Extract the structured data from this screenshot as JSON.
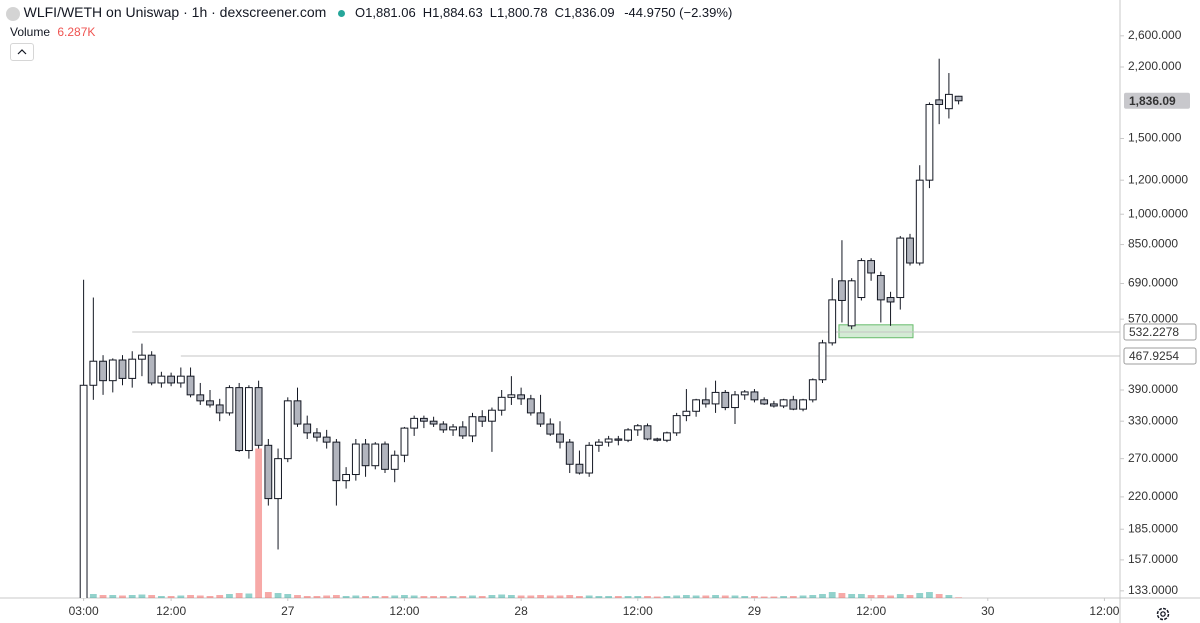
{
  "header": {
    "title": "WLFI/WETH on Uniswap · 1h · dexscreener.com",
    "ohlc": [
      {
        "key": "O",
        "value": "1,881.06"
      },
      {
        "key": "H",
        "value": "1,884.63"
      },
      {
        "key": "L",
        "value": "1,800.78"
      },
      {
        "key": "C",
        "value": "1,836.09"
      }
    ],
    "change": "-44.9750",
    "change_pct": "(−2.39%)",
    "volume_label": "Volume",
    "volume_value": "6.287K"
  },
  "chart_data": {
    "type": "candlestick",
    "log_scale": true,
    "grid": false,
    "up_color": "#ffffff",
    "down_color": "#b2b5be",
    "edge_color": "#131722",
    "volume_up_color": "#26a69a",
    "volume_down_color": "#ef5350",
    "x": [
      3,
      4,
      5,
      6,
      7,
      8,
      9,
      10,
      11,
      12,
      13,
      14,
      15,
      16,
      17,
      18,
      19,
      20,
      21,
      22,
      23,
      24,
      25,
      26,
      27,
      28,
      29,
      30,
      31,
      32,
      33,
      34,
      35,
      36,
      37,
      38,
      39,
      40,
      41,
      42,
      43,
      44,
      45,
      46,
      47,
      48,
      49,
      50,
      51,
      52,
      53,
      54,
      55,
      56,
      57,
      58,
      59,
      60,
      61,
      62,
      63,
      64,
      65,
      66,
      67,
      68,
      69,
      70,
      71,
      72,
      73,
      74,
      75,
      76,
      77,
      78,
      79,
      80,
      81,
      82,
      83,
      84,
      85,
      86,
      87,
      88,
      89,
      90,
      91,
      92,
      93
    ],
    "open": [
      125,
      400,
      455,
      410,
      458,
      415,
      460,
      470,
      405,
      420,
      405,
      420,
      380,
      368,
      360,
      345,
      395,
      282,
      395,
      290,
      218,
      270,
      368,
      325,
      310,
      303,
      295,
      240,
      248,
      292,
      260,
      292,
      255,
      275,
      318,
      335,
      330,
      325,
      315,
      320,
      305,
      338,
      330,
      350,
      375,
      380,
      372,
      345,
      325,
      308,
      295,
      262,
      250,
      290,
      295,
      300,
      298,
      315,
      322,
      300,
      298,
      310,
      340,
      348,
      370,
      362,
      385,
      355,
      380,
      386,
      370,
      362,
      358,
      370,
      352,
      370,
      412,
      502,
      700,
      550,
      640,
      780,
      720,
      640,
      640,
      880,
      770,
      1200,
      1845,
      1760,
      1881.06
    ],
    "high": [
      704,
      640,
      470,
      462,
      470,
      480,
      500,
      480,
      430,
      428,
      440,
      440,
      405,
      390,
      372,
      400,
      405,
      400,
      410,
      300,
      285,
      375,
      395,
      340,
      318,
      315,
      300,
      258,
      300,
      300,
      295,
      296,
      282,
      320,
      340,
      340,
      338,
      330,
      325,
      330,
      345,
      350,
      355,
      390,
      420,
      395,
      380,
      380,
      335,
      330,
      300,
      282,
      295,
      300,
      305,
      305,
      318,
      325,
      326,
      302,
      312,
      345,
      392,
      372,
      395,
      410,
      390,
      388,
      390,
      392,
      375,
      368,
      372,
      378,
      372,
      415,
      510,
      710,
      870,
      710,
      790,
      790,
      735,
      660,
      890,
      900,
      1300,
      1820,
      2300,
      2130,
      1884.63
    ],
    "low": [
      120,
      370,
      380,
      385,
      400,
      395,
      420,
      400,
      395,
      398,
      395,
      375,
      360,
      355,
      330,
      340,
      280,
      270,
      285,
      210,
      166,
      265,
      320,
      300,
      296,
      285,
      210,
      230,
      240,
      245,
      255,
      250,
      238,
      265,
      305,
      318,
      320,
      310,
      305,
      300,
      295,
      320,
      280,
      340,
      360,
      360,
      340,
      320,
      305,
      285,
      250,
      248,
      245,
      280,
      288,
      290,
      295,
      305,
      298,
      296,
      295,
      305,
      330,
      338,
      355,
      345,
      350,
      325,
      370,
      365,
      360,
      355,
      354,
      350,
      348,
      365,
      405,
      495,
      560,
      540,
      630,
      700,
      560,
      550,
      600,
      760,
      760,
      1150,
      1620,
      1670,
      1800.78
    ],
    "close": [
      400,
      455,
      410,
      458,
      415,
      460,
      470,
      405,
      420,
      405,
      420,
      380,
      368,
      360,
      345,
      395,
      282,
      395,
      290,
      218,
      270,
      368,
      325,
      310,
      303,
      295,
      240,
      248,
      292,
      260,
      292,
      255,
      275,
      318,
      335,
      330,
      325,
      315,
      320,
      305,
      338,
      330,
      350,
      375,
      380,
      372,
      345,
      325,
      308,
      295,
      262,
      250,
      290,
      295,
      300,
      298,
      315,
      322,
      300,
      298,
      310,
      340,
      348,
      370,
      362,
      385,
      355,
      380,
      386,
      370,
      362,
      358,
      370,
      352,
      370,
      412,
      502,
      632,
      630,
      700,
      780,
      730,
      632,
      625,
      880,
      770,
      1200,
      1800,
      1800,
      1900,
      1836.09
    ],
    "volume": [
      60000,
      40000,
      30000,
      30000,
      25000,
      30000,
      35000,
      30000,
      20000,
      20000,
      25000,
      30000,
      25000,
      20000,
      30000,
      40000,
      50000,
      45000,
      1500000,
      60000,
      50000,
      40000,
      30000,
      20000,
      20000,
      25000,
      30000,
      20000,
      25000,
      20000,
      20000,
      20000,
      25000,
      30000,
      25000,
      20000,
      20000,
      20000,
      20000,
      20000,
      25000,
      20000,
      30000,
      35000,
      30000,
      25000,
      25000,
      30000,
      25000,
      25000,
      30000,
      20000,
      25000,
      20000,
      20000,
      20000,
      20000,
      20000,
      20000,
      15000,
      20000,
      25000,
      30000,
      25000,
      25000,
      30000,
      25000,
      25000,
      20000,
      20000,
      15000,
      15000,
      20000,
      20000,
      25000,
      30000,
      40000,
      60000,
      50000,
      40000,
      40000,
      30000,
      30000,
      25000,
      40000,
      30000,
      50000,
      60000,
      40000,
      30000,
      6287
    ],
    "volume_ylim": [
      0,
      6000000
    ],
    "xlim": [
      -5.6,
      109.6
    ],
    "xticks": [
      {
        "value": 3,
        "label": "03:00"
      },
      {
        "value": 12,
        "label": "12:00"
      },
      {
        "value": 24,
        "label": "27"
      },
      {
        "value": 36,
        "label": "12:00"
      },
      {
        "value": 48,
        "label": "28"
      },
      {
        "value": 60,
        "label": "12:00"
      },
      {
        "value": 72,
        "label": "29"
      },
      {
        "value": 84,
        "label": "12:00"
      },
      {
        "value": 96,
        "label": "30"
      },
      {
        "value": 108,
        "label": "12:00"
      }
    ],
    "ylim": [
      128,
      3150
    ],
    "yticks": [
      {
        "value": 133,
        "label": "133.0000"
      },
      {
        "value": 157,
        "label": "157.0000"
      },
      {
        "value": 185,
        "label": "185.0000"
      },
      {
        "value": 220,
        "label": "220.0000"
      },
      {
        "value": 270,
        "label": "270.0000"
      },
      {
        "value": 330,
        "label": "330.0000"
      },
      {
        "value": 390,
        "label": "390.0000"
      },
      {
        "value": 570,
        "label": "570.0000"
      },
      {
        "value": 690,
        "label": "690.0000"
      },
      {
        "value": 850,
        "label": "850.0000"
      },
      {
        "value": 1000,
        "label": "1,000.0000"
      },
      {
        "value": 1200,
        "label": "1,200.0000"
      },
      {
        "value": 1500,
        "label": "1,500.000"
      },
      {
        "value": 2200,
        "label": "2,200.000"
      },
      {
        "value": 2600,
        "label": "2,600.000"
      }
    ],
    "price_lines": [
      {
        "value": 532.2278,
        "x_start": 8
      },
      {
        "value": 467.9254,
        "x_start": 13
      }
    ],
    "last_price": {
      "value": 1836.09,
      "label": "1,836.09"
    },
    "zone": {
      "x": [
        81,
        88
      ],
      "y": [
        516,
        553
      ],
      "color": "#c8e6c9"
    }
  }
}
